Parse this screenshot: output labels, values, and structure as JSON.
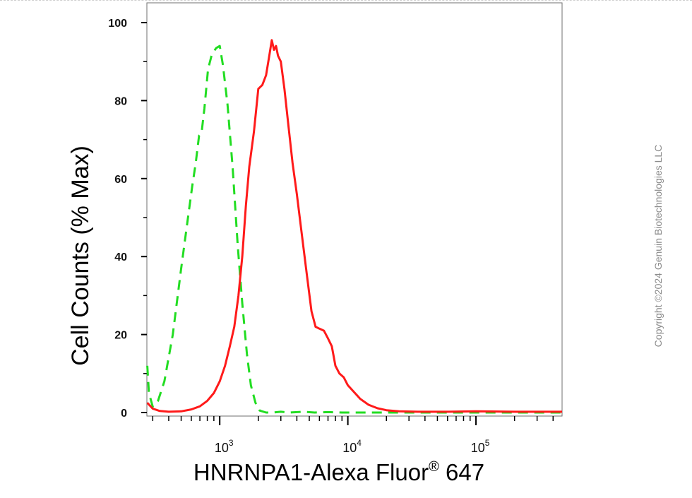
{
  "chart_data": {
    "type": "line",
    "title": "",
    "xlabel": "HNRNPA1-Alexa Fluor",
    "xlabel_superscript": "®",
    "xlabel_suffix": " 647",
    "ylabel": "Cell Counts (% Max)",
    "xscale": "log",
    "xlim": [
      270,
      470000
    ],
    "ylim": [
      0,
      105
    ],
    "grid": false,
    "legend": "none",
    "x_ticks": [
      {
        "value": 1000,
        "base": "10",
        "exp": "3"
      },
      {
        "value": 10000,
        "base": "10",
        "exp": "4"
      },
      {
        "value": 100000,
        "base": "10",
        "exp": "5"
      }
    ],
    "y_ticks": [
      {
        "value": 0,
        "label": "0"
      },
      {
        "value": 20,
        "label": "20"
      },
      {
        "value": 40,
        "label": "40"
      },
      {
        "value": 60,
        "label": "60"
      },
      {
        "value": 80,
        "label": "80"
      },
      {
        "value": 100,
        "label": "100"
      }
    ],
    "series": [
      {
        "style": "dashed",
        "color": "#22dd22",
        "points": [
          [
            272,
            12
          ],
          [
            280,
            5
          ],
          [
            300,
            1.5
          ],
          [
            330,
            3
          ],
          [
            370,
            8
          ],
          [
            430,
            20
          ],
          [
            500,
            37
          ],
          [
            560,
            49
          ],
          [
            610,
            58
          ],
          [
            650,
            64
          ],
          [
            690,
            71
          ],
          [
            720,
            71.5
          ],
          [
            760,
            78
          ],
          [
            810,
            88
          ],
          [
            870,
            92
          ],
          [
            940,
            93.5
          ],
          [
            1000,
            94
          ],
          [
            1060,
            89
          ],
          [
            1150,
            79
          ],
          [
            1260,
            63
          ],
          [
            1380,
            43
          ],
          [
            1500,
            28
          ],
          [
            1630,
            15
          ],
          [
            1750,
            7
          ],
          [
            1900,
            2.5
          ],
          [
            2050,
            0.5
          ],
          [
            2300,
            0
          ],
          [
            2600,
            0
          ],
          [
            3000,
            0.2
          ],
          [
            3500,
            0
          ],
          [
            4500,
            0.2
          ],
          [
            5500,
            0
          ],
          [
            7000,
            0.1
          ],
          [
            9000,
            0
          ],
          [
            15000,
            0
          ],
          [
            30000,
            0
          ],
          [
            100000,
            0
          ],
          [
            470000,
            0
          ]
        ]
      },
      {
        "style": "solid",
        "color": "#ff1a1a",
        "points": [
          [
            272,
            2.5
          ],
          [
            300,
            1
          ],
          [
            340,
            0.4
          ],
          [
            400,
            0.2
          ],
          [
            500,
            0.3
          ],
          [
            600,
            0.8
          ],
          [
            700,
            1.6
          ],
          [
            800,
            3
          ],
          [
            900,
            5
          ],
          [
            1000,
            8
          ],
          [
            1100,
            12
          ],
          [
            1200,
            17
          ],
          [
            1300,
            22
          ],
          [
            1400,
            30
          ],
          [
            1500,
            40
          ],
          [
            1600,
            53
          ],
          [
            1700,
            63
          ],
          [
            1850,
            72
          ],
          [
            2000,
            83
          ],
          [
            2150,
            84
          ],
          [
            2300,
            86.5
          ],
          [
            2450,
            92
          ],
          [
            2550,
            95.5
          ],
          [
            2650,
            93
          ],
          [
            2750,
            94
          ],
          [
            2850,
            91.5
          ],
          [
            3000,
            90
          ],
          [
            3200,
            83
          ],
          [
            3400,
            75
          ],
          [
            3700,
            64
          ],
          [
            4000,
            56
          ],
          [
            4400,
            45
          ],
          [
            4800,
            35
          ],
          [
            5200,
            26
          ],
          [
            5600,
            22
          ],
          [
            6000,
            21.5
          ],
          [
            6500,
            21
          ],
          [
            7000,
            19
          ],
          [
            7500,
            17
          ],
          [
            8000,
            12
          ],
          [
            8600,
            10
          ],
          [
            9300,
            9
          ],
          [
            10000,
            7
          ],
          [
            11000,
            5.5
          ],
          [
            12500,
            3.5
          ],
          [
            14500,
            2
          ],
          [
            17000,
            1.1
          ],
          [
            20000,
            0.6
          ],
          [
            25000,
            0.3
          ],
          [
            35000,
            0.2
          ],
          [
            60000,
            0.2
          ],
          [
            100000,
            0.3
          ],
          [
            200000,
            0.2
          ],
          [
            470000,
            0.2
          ]
        ]
      }
    ]
  },
  "watermark": "Copyright ©2024 Genuin Biotechnologies LLC"
}
